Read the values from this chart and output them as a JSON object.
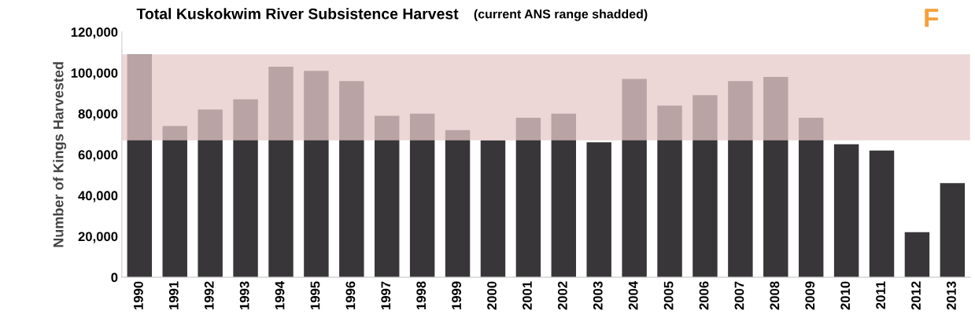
{
  "chart_data": {
    "type": "bar",
    "title": "Total Kuskokwim River Subsistence Harvest",
    "subtitle": "(current ANS range shadded)",
    "ylabel": "Number of Kings Harvested",
    "annotations": [
      "F"
    ],
    "categories": [
      "1990",
      "1991",
      "1992",
      "1993",
      "1994",
      "1995",
      "1996",
      "1997",
      "1998",
      "1999",
      "2000",
      "2001",
      "2002",
      "2003",
      "2004",
      "2005",
      "2006",
      "2007",
      "2008",
      "2009",
      "2010",
      "2011",
      "2012",
      "2013"
    ],
    "values": [
      109000,
      74000,
      82000,
      87000,
      103000,
      101000,
      96000,
      79000,
      80000,
      72000,
      67000,
      78000,
      80000,
      66000,
      97000,
      84000,
      89000,
      96000,
      98000,
      78000,
      65000,
      62000,
      22000,
      46000
    ],
    "color": "#383638",
    "bands": [
      {
        "axis": "y",
        "from": 67000,
        "to": 109000,
        "color": "#e6c8c8"
      }
    ],
    "ylim": [
      0,
      120000
    ],
    "yticks": [
      {
        "value": 0,
        "label": "0"
      },
      {
        "value": 20000,
        "label": "20,000"
      },
      {
        "value": 40000,
        "label": "40,000"
      },
      {
        "value": 60000,
        "label": "60,000"
      },
      {
        "value": 80000,
        "label": "80,000"
      },
      {
        "value": 100000,
        "label": "100,000"
      },
      {
        "value": 120000,
        "label": "120,000"
      }
    ],
    "grid": false
  }
}
